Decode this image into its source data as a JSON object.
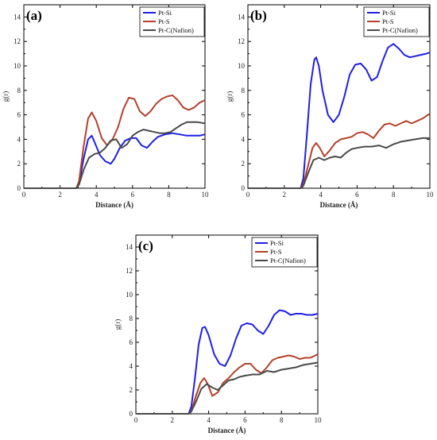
{
  "figure": {
    "panels": [
      "a",
      "b",
      "c"
    ]
  },
  "colors": {
    "pt_si": "#1f1fe6",
    "pt_s": "#b5402a",
    "pt_c": "#4a4a4a",
    "axis": "#000000"
  },
  "chart_data": [
    {
      "id": "a",
      "type": "line",
      "panel_label": "(a)",
      "xlabel": "Distance (Å)",
      "ylabel": "g(r)",
      "xlim": [
        0,
        10
      ],
      "ylim": [
        0,
        15
      ],
      "xticks": [
        0,
        2,
        4,
        6,
        8,
        10
      ],
      "yticks": [
        0,
        2,
        4,
        6,
        8,
        10,
        12,
        14
      ],
      "grid": false,
      "legend_position": "top-right",
      "series": [
        {
          "name": "Pt-Si",
          "color": "#1f1fe6",
          "x": [
            0,
            2.9,
            3.05,
            3.3,
            3.55,
            3.75,
            3.95,
            4.2,
            4.5,
            4.8,
            5.0,
            5.3,
            5.6,
            5.9,
            6.2,
            6.5,
            6.8,
            7.1,
            7.4,
            7.8,
            8.2,
            8.6,
            9.0,
            9.4,
            9.7,
            10.0
          ],
          "y": [
            0,
            0,
            0.4,
            2.4,
            4.0,
            4.3,
            3.6,
            2.7,
            2.2,
            2.0,
            2.4,
            3.3,
            3.9,
            4.1,
            4.1,
            3.5,
            3.3,
            3.8,
            4.2,
            4.4,
            4.5,
            4.4,
            4.3,
            4.3,
            4.3,
            4.4
          ]
        },
        {
          "name": "Pt-S",
          "color": "#b5402a",
          "x": [
            0,
            2.9,
            3.05,
            3.3,
            3.55,
            3.75,
            4.0,
            4.3,
            4.6,
            4.9,
            5.2,
            5.5,
            5.8,
            6.1,
            6.4,
            6.7,
            7.0,
            7.3,
            7.6,
            7.9,
            8.2,
            8.5,
            8.8,
            9.1,
            9.4,
            9.7,
            10.0
          ],
          "y": [
            0,
            0,
            0.6,
            3.4,
            5.7,
            6.2,
            5.5,
            4.1,
            3.5,
            4.0,
            5.0,
            6.5,
            7.4,
            7.3,
            6.3,
            5.9,
            6.3,
            6.9,
            7.3,
            7.5,
            7.6,
            7.2,
            6.6,
            6.4,
            6.6,
            7.0,
            7.2
          ]
        },
        {
          "name": "Pt-C(Nafion)",
          "color": "#4a4a4a",
          "x": [
            0,
            2.9,
            3.05,
            3.3,
            3.6,
            3.9,
            4.2,
            4.5,
            4.8,
            5.1,
            5.4,
            5.7,
            6.0,
            6.3,
            6.6,
            6.9,
            7.2,
            7.5,
            7.8,
            8.1,
            8.4,
            8.7,
            9.0,
            9.3,
            9.6,
            10.0
          ],
          "y": [
            0,
            0,
            0.3,
            1.5,
            2.5,
            2.8,
            2.9,
            3.3,
            3.9,
            4.0,
            3.3,
            3.6,
            4.3,
            4.6,
            4.8,
            4.7,
            4.6,
            4.5,
            4.5,
            4.6,
            4.9,
            5.2,
            5.4,
            5.4,
            5.4,
            5.3
          ]
        }
      ]
    },
    {
      "id": "b",
      "type": "line",
      "panel_label": "(b)",
      "xlabel": "Distance (Å)",
      "ylabel": "g(r)",
      "xlim": [
        0,
        10
      ],
      "ylim": [
        0,
        15
      ],
      "xticks": [
        0,
        2,
        4,
        6,
        8,
        10
      ],
      "yticks": [
        0,
        2,
        4,
        6,
        8,
        10,
        12,
        14
      ],
      "grid": false,
      "legend_position": "top-right",
      "series": [
        {
          "name": "Pt-Si",
          "color": "#1f1fe6",
          "x": [
            0,
            2.9,
            3.05,
            3.25,
            3.45,
            3.65,
            3.75,
            3.9,
            4.1,
            4.4,
            4.7,
            5.0,
            5.3,
            5.6,
            5.9,
            6.2,
            6.5,
            6.8,
            7.1,
            7.4,
            7.7,
            8.0,
            8.3,
            8.6,
            8.9,
            9.2,
            9.5,
            9.8,
            10.0
          ],
          "y": [
            0,
            0,
            0.8,
            4.5,
            8.5,
            10.5,
            10.7,
            10.0,
            8.0,
            6.0,
            5.4,
            6.0,
            7.5,
            9.3,
            10.1,
            10.2,
            9.7,
            8.8,
            9.1,
            10.4,
            11.5,
            11.8,
            11.4,
            10.9,
            10.7,
            10.8,
            10.9,
            11.0,
            11.1
          ]
        },
        {
          "name": "Pt-S",
          "color": "#b5402a",
          "x": [
            0,
            2.9,
            3.05,
            3.3,
            3.55,
            3.75,
            3.95,
            4.2,
            4.5,
            4.8,
            5.1,
            5.4,
            5.7,
            6.0,
            6.3,
            6.6,
            6.9,
            7.2,
            7.5,
            7.8,
            8.1,
            8.4,
            8.7,
            9.0,
            9.3,
            9.6,
            10.0
          ],
          "y": [
            0,
            0,
            0.3,
            1.8,
            3.3,
            3.7,
            3.3,
            2.6,
            3.1,
            3.7,
            4.0,
            4.1,
            4.2,
            4.5,
            4.6,
            4.4,
            4.1,
            4.7,
            5.2,
            5.3,
            5.1,
            5.3,
            5.5,
            5.3,
            5.5,
            5.7,
            6.1
          ]
        },
        {
          "name": "Pt-C(Nafion)",
          "color": "#4a4a4a",
          "x": [
            0,
            2.9,
            3.05,
            3.3,
            3.6,
            3.9,
            4.2,
            4.5,
            4.8,
            5.1,
            5.4,
            5.7,
            6.0,
            6.4,
            6.8,
            7.2,
            7.6,
            8.0,
            8.4,
            8.8,
            9.2,
            9.6,
            10.0
          ],
          "y": [
            0,
            0,
            0.2,
            1.2,
            2.3,
            2.5,
            2.3,
            2.5,
            2.6,
            2.5,
            2.9,
            3.2,
            3.3,
            3.4,
            3.4,
            3.5,
            3.3,
            3.6,
            3.8,
            3.9,
            4.0,
            4.1,
            4.1
          ]
        }
      ]
    },
    {
      "id": "c",
      "type": "line",
      "panel_label": "(c)",
      "xlabel": "Distance (Å)",
      "ylabel": "g(r)",
      "xlim": [
        0,
        10
      ],
      "ylim": [
        0,
        15
      ],
      "xticks": [
        0,
        2,
        4,
        6,
        8,
        10
      ],
      "yticks": [
        0,
        2,
        4,
        6,
        8,
        10,
        12,
        14
      ],
      "grid": false,
      "legend_position": "top-right",
      "series": [
        {
          "name": "Pt-Si",
          "color": "#1f1fe6",
          "x": [
            0,
            2.9,
            3.05,
            3.25,
            3.45,
            3.65,
            3.8,
            4.0,
            4.3,
            4.6,
            4.9,
            5.2,
            5.5,
            5.8,
            6.1,
            6.4,
            6.7,
            7.0,
            7.3,
            7.6,
            7.9,
            8.2,
            8.5,
            8.8,
            9.1,
            9.4,
            9.7,
            10.0
          ],
          "y": [
            0,
            0,
            0.6,
            3.0,
            5.8,
            7.2,
            7.3,
            6.6,
            5.0,
            4.2,
            4.0,
            4.9,
            6.3,
            7.4,
            7.6,
            7.5,
            7.0,
            6.7,
            7.4,
            8.3,
            8.7,
            8.6,
            8.3,
            8.4,
            8.4,
            8.3,
            8.3,
            8.4
          ]
        },
        {
          "name": "Pt-S",
          "color": "#b5402a",
          "x": [
            0,
            2.9,
            3.05,
            3.3,
            3.55,
            3.75,
            3.95,
            4.2,
            4.5,
            4.8,
            5.1,
            5.4,
            5.7,
            6.0,
            6.3,
            6.6,
            6.9,
            7.2,
            7.5,
            7.8,
            8.1,
            8.4,
            8.7,
            9.0,
            9.3,
            9.6,
            10.0
          ],
          "y": [
            0,
            0,
            0.2,
            1.5,
            2.6,
            3.0,
            2.5,
            1.5,
            1.8,
            2.6,
            3.0,
            3.5,
            3.9,
            4.2,
            4.2,
            3.7,
            3.4,
            3.9,
            4.5,
            4.7,
            4.8,
            4.9,
            4.8,
            4.6,
            4.7,
            4.7,
            5.0
          ]
        },
        {
          "name": "Pt-C(Nafion)",
          "color": "#4a4a4a",
          "x": [
            0,
            2.9,
            3.05,
            3.3,
            3.6,
            3.9,
            4.2,
            4.5,
            4.8,
            5.1,
            5.4,
            5.7,
            6.0,
            6.4,
            6.8,
            7.2,
            7.6,
            8.0,
            8.4,
            8.8,
            9.2,
            9.6,
            10.0
          ],
          "y": [
            0,
            0,
            0.2,
            1.0,
            2.1,
            2.5,
            2.2,
            2.0,
            2.4,
            2.8,
            2.9,
            3.1,
            3.2,
            3.3,
            3.3,
            3.6,
            3.5,
            3.7,
            3.8,
            3.9,
            4.1,
            4.2,
            4.3
          ]
        }
      ]
    }
  ]
}
